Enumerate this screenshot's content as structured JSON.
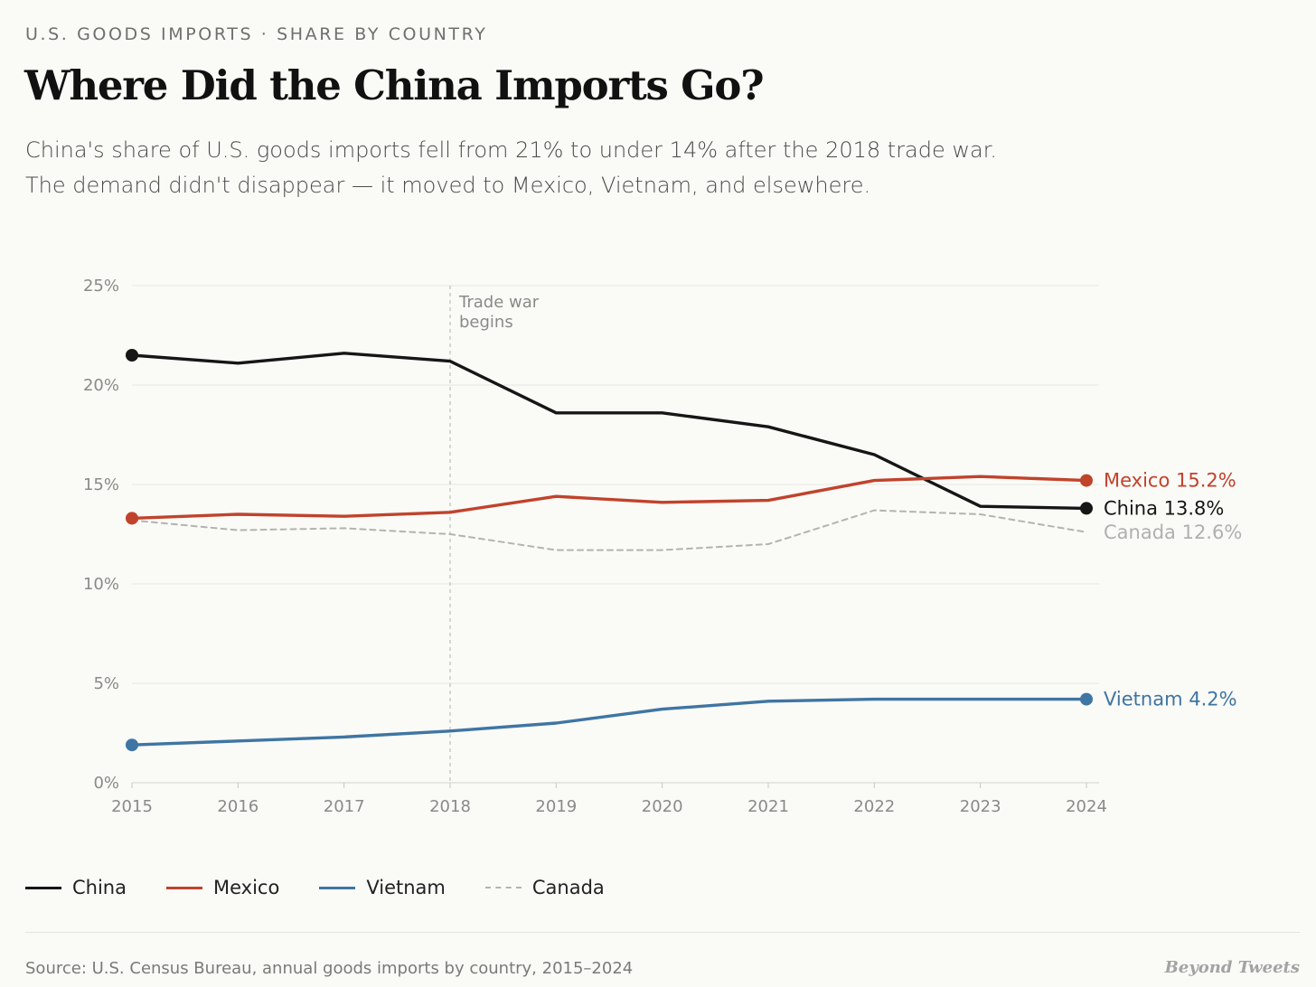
{
  "header": {
    "kicker": "U.S. GOODS IMPORTS · SHARE BY COUNTRY",
    "title": "Where Did the China Imports Go?",
    "subtitle_line1": "China's share of U.S. goods imports fell from 21% to under 14% after the 2018 trade war.",
    "subtitle_line2": "The demand didn't disappear — it moved to Mexico, Vietnam, and elsewhere."
  },
  "chart_data": {
    "type": "line",
    "x": [
      2015,
      2016,
      2017,
      2018,
      2019,
      2020,
      2021,
      2022,
      2023,
      2024
    ],
    "ylim": [
      0,
      25
    ],
    "yticks": [
      0,
      5,
      10,
      15,
      20,
      25
    ],
    "ytick_labels": [
      "0%",
      "5%",
      "10%",
      "15%",
      "20%",
      "25%"
    ],
    "xtick_labels": [
      "2015",
      "2016",
      "2017",
      "2018",
      "2019",
      "2020",
      "2021",
      "2022",
      "2023",
      "2024"
    ],
    "grid": true,
    "series": [
      {
        "name": "China",
        "color": "#161616",
        "style": "solid",
        "values": [
          21.5,
          21.1,
          21.6,
          21.2,
          18.6,
          18.6,
          17.9,
          16.5,
          13.9,
          13.8
        ],
        "end_label": "China 13.8%",
        "label_color": "#161616",
        "markers": "start-end"
      },
      {
        "name": "Mexico",
        "color": "#c0432b",
        "style": "solid",
        "values": [
          13.3,
          13.5,
          13.4,
          13.6,
          14.4,
          14.1,
          14.2,
          15.2,
          15.4,
          15.2
        ],
        "end_label": "Mexico 15.2%",
        "label_color": "#c0432b",
        "markers": "start-end"
      },
      {
        "name": "Vietnam",
        "color": "#3f75a3",
        "style": "solid",
        "values": [
          1.9,
          2.1,
          2.3,
          2.6,
          3.0,
          3.7,
          4.1,
          4.2,
          4.2,
          4.2
        ],
        "end_label": "Vietnam 4.2%",
        "label_color": "#3f75a3",
        "markers": "start-end"
      },
      {
        "name": "Canada",
        "color": "#b3b3b3",
        "style": "dashed",
        "values": [
          13.2,
          12.7,
          12.8,
          12.5,
          11.7,
          11.7,
          12.0,
          13.7,
          13.5,
          12.6
        ],
        "end_label": "Canada 12.6%",
        "label_color": "#b0b0b0",
        "markers": "none"
      }
    ],
    "annotation": {
      "x": 2018,
      "label_line1": "Trade war",
      "label_line2": "begins"
    }
  },
  "legend": [
    {
      "name": "China",
      "color": "#161616",
      "style": "solid"
    },
    {
      "name": "Mexico",
      "color": "#c0432b",
      "style": "solid"
    },
    {
      "name": "Vietnam",
      "color": "#3f75a3",
      "style": "solid"
    },
    {
      "name": "Canada",
      "color": "#b3b3b3",
      "style": "dashed"
    }
  ],
  "footer": {
    "source": "Source: U.S. Census Bureau, annual goods imports by country, 2015–2024",
    "brand": "Beyond Tweets"
  }
}
